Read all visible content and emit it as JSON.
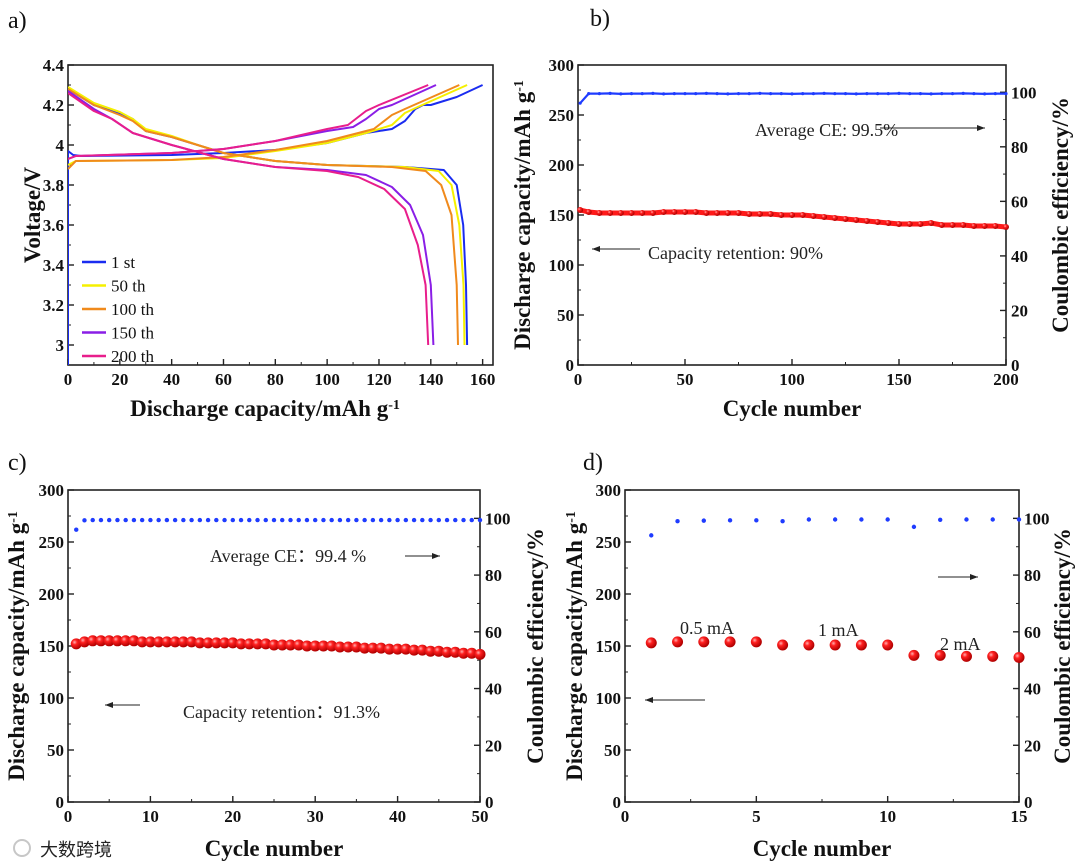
{
  "watermark": "大数跨境",
  "chart_data": [
    {
      "panel": "a)",
      "type": "line",
      "xlabel": "Discharge capacity/mAh g",
      "xlabel_sup": "-1",
      "ylabel": "Voltage/V",
      "xlim": [
        0,
        164
      ],
      "ylim": [
        2.9,
        4.4
      ],
      "xticks": [
        0,
        20,
        40,
        60,
        80,
        100,
        120,
        140,
        160
      ],
      "yticks": [
        3.0,
        3.2,
        3.4,
        3.6,
        3.8,
        4.0,
        4.2,
        4.4
      ],
      "legend_position": "bottom-left",
      "series": [
        {
          "name": "1 st",
          "color": "#1a2cf0",
          "charge": [
            [
              0,
              2.9
            ],
            [
              0,
              3.97
            ],
            [
              2,
              3.95
            ],
            [
              5,
              3.945
            ],
            [
              40,
              3.95
            ],
            [
              60,
              3.96
            ],
            [
              80,
              3.975
            ],
            [
              100,
              4.01
            ],
            [
              115,
              4.06
            ],
            [
              120,
              4.07
            ],
            [
              125,
              4.08
            ],
            [
              130,
              4.12
            ],
            [
              134,
              4.18
            ],
            [
              137,
              4.2
            ],
            [
              140,
              4.2
            ],
            [
              150,
              4.24
            ],
            [
              160,
              4.3
            ]
          ],
          "discharge": [
            [
              0,
              4.28
            ],
            [
              10,
              4.2
            ],
            [
              20,
              4.16
            ],
            [
              25,
              4.13
            ],
            [
              30,
              4.07
            ],
            [
              40,
              4.04
            ],
            [
              50,
              4.0
            ],
            [
              60,
              3.96
            ],
            [
              70,
              3.94
            ],
            [
              80,
              3.92
            ],
            [
              100,
              3.9
            ],
            [
              130,
              3.89
            ],
            [
              145,
              3.875
            ],
            [
              150,
              3.8
            ],
            [
              152.5,
              3.6
            ],
            [
              153.6,
              3.3
            ],
            [
              154,
              3.0
            ]
          ]
        },
        {
          "name": "50 th",
          "color": "#f5f000",
          "charge": [
            [
              0,
              3.9
            ],
            [
              3,
              3.92
            ],
            [
              40,
              3.925
            ],
            [
              60,
              3.935
            ],
            [
              80,
              3.97
            ],
            [
              100,
              4.01
            ],
            [
              115,
              4.06
            ],
            [
              125,
              4.1
            ],
            [
              130,
              4.16
            ],
            [
              135,
              4.19
            ],
            [
              154,
              4.3
            ]
          ],
          "discharge": [
            [
              0,
              4.29
            ],
            [
              10,
              4.21
            ],
            [
              20,
              4.165
            ],
            [
              25,
              4.13
            ],
            [
              30,
              4.08
            ],
            [
              40,
              4.045
            ],
            [
              50,
              4.0
            ],
            [
              60,
              3.96
            ],
            [
              70,
              3.94
            ],
            [
              80,
              3.92
            ],
            [
              100,
              3.9
            ],
            [
              130,
              3.89
            ],
            [
              143,
              3.87
            ],
            [
              148,
              3.8
            ],
            [
              151,
              3.6
            ],
            [
              152.6,
              3.3
            ],
            [
              153,
              3.0
            ]
          ]
        },
        {
          "name": "100 th",
          "color": "#f08a1c",
          "charge": [
            [
              0,
              3.88
            ],
            [
              3,
              3.92
            ],
            [
              40,
              3.925
            ],
            [
              60,
              3.94
            ],
            [
              80,
              3.975
            ],
            [
              100,
              4.02
            ],
            [
              118,
              4.08
            ],
            [
              125,
              4.15
            ],
            [
              130,
              4.18
            ],
            [
              151,
              4.3
            ]
          ],
          "discharge": [
            [
              0,
              4.28
            ],
            [
              10,
              4.2
            ],
            [
              20,
              4.15
            ],
            [
              25,
              4.12
            ],
            [
              30,
              4.07
            ],
            [
              40,
              4.04
            ],
            [
              50,
              4.0
            ],
            [
              60,
              3.96
            ],
            [
              70,
              3.94
            ],
            [
              80,
              3.92
            ],
            [
              100,
              3.9
            ],
            [
              125,
              3.89
            ],
            [
              138,
              3.87
            ],
            [
              144,
              3.8
            ],
            [
              148,
              3.65
            ],
            [
              150,
              3.3
            ],
            [
              150.5,
              3.0
            ]
          ]
        },
        {
          "name": "150 th",
          "color": "#8a1ee6",
          "charge": [
            [
              0,
              3.93
            ],
            [
              3,
              3.945
            ],
            [
              40,
              3.96
            ],
            [
              60,
              3.98
            ],
            [
              80,
              4.02
            ],
            [
              100,
              4.07
            ],
            [
              110,
              4.09
            ],
            [
              115,
              4.13
            ],
            [
              120,
              4.18
            ],
            [
              125,
              4.2
            ],
            [
              142,
              4.3
            ]
          ],
          "discharge": [
            [
              0,
              4.27
            ],
            [
              10,
              4.18
            ],
            [
              17,
              4.13
            ],
            [
              25,
              4.06
            ],
            [
              40,
              4.0
            ],
            [
              60,
              3.93
            ],
            [
              80,
              3.89
            ],
            [
              100,
              3.875
            ],
            [
              115,
              3.85
            ],
            [
              125,
              3.79
            ],
            [
              132,
              3.7
            ],
            [
              137,
              3.55
            ],
            [
              140,
              3.3
            ],
            [
              141,
              3.0
            ]
          ]
        },
        {
          "name": "200 th",
          "color": "#e81e8c",
          "charge": [
            [
              0,
              3.93
            ],
            [
              3,
              3.945
            ],
            [
              40,
              3.96
            ],
            [
              60,
              3.98
            ],
            [
              80,
              4.02
            ],
            [
              100,
              4.08
            ],
            [
              108,
              4.1
            ],
            [
              115,
              4.17
            ],
            [
              120,
              4.2
            ],
            [
              139,
              4.3
            ]
          ],
          "discharge": [
            [
              0,
              4.26
            ],
            [
              10,
              4.17
            ],
            [
              17,
              4.13
            ],
            [
              25,
              4.06
            ],
            [
              40,
              4.0
            ],
            [
              60,
              3.93
            ],
            [
              80,
              3.89
            ],
            [
              100,
              3.87
            ],
            [
              112,
              3.84
            ],
            [
              122,
              3.78
            ],
            [
              130,
              3.68
            ],
            [
              135,
              3.5
            ],
            [
              138,
              3.3
            ],
            [
              139,
              3.0
            ]
          ]
        }
      ]
    },
    {
      "panel": "b)",
      "type": "scatter",
      "xlabel": "Cycle number",
      "ylabel": "Discharge capacity/mAh g",
      "ylabel_sup": "-1",
      "y2label": "Coulombic efficiency/%",
      "xlim": [
        0,
        200
      ],
      "ylim": [
        0,
        300
      ],
      "y2lim": [
        0,
        110
      ],
      "xticks": [
        0,
        50,
        100,
        150,
        200
      ],
      "yticks": [
        0,
        50,
        100,
        150,
        200,
        250,
        300
      ],
      "y2ticks": [
        0,
        20,
        40,
        60,
        80,
        100
      ],
      "annotations": [
        "Average CE: 99.5%",
        "Capacity retention: 90%"
      ],
      "x": [
        1,
        5,
        10,
        15,
        20,
        25,
        30,
        35,
        40,
        45,
        50,
        55,
        60,
        65,
        70,
        75,
        80,
        85,
        90,
        95,
        100,
        105,
        110,
        115,
        120,
        125,
        130,
        135,
        140,
        145,
        150,
        155,
        160,
        165,
        170,
        175,
        180,
        185,
        190,
        195,
        200
      ],
      "capacity": [
        155,
        153,
        152,
        152,
        152,
        152,
        152,
        152,
        153,
        153,
        153,
        153,
        152,
        152,
        152,
        152,
        151,
        151,
        151,
        150,
        150,
        150,
        149,
        148,
        147,
        146,
        145,
        144,
        143,
        142,
        141,
        141,
        141,
        142,
        140,
        140,
        140,
        139,
        139,
        139,
        138
      ],
      "ce": [
        96,
        99.5,
        99.5,
        99.6,
        99.4,
        99.5,
        99.5,
        99.6,
        99.4,
        99.5,
        99.5,
        99.5,
        99.6,
        99.5,
        99.4,
        99.5,
        99.5,
        99.6,
        99.5,
        99.5,
        99.4,
        99.5,
        99.5,
        99.6,
        99.5,
        99.5,
        99.4,
        99.5,
        99.5,
        99.5,
        99.6,
        99.5,
        99.5,
        99.4,
        99.5,
        99.5,
        99.6,
        99.5,
        99.4,
        99.5,
        99.5
      ]
    },
    {
      "panel": "c)",
      "type": "scatter",
      "xlabel": "Cycle number",
      "ylabel": "Discharge capacity/mAh g",
      "ylabel_sup": "-1",
      "y2label": "Coulombic efficiency/%",
      "xlim": [
        0,
        50
      ],
      "ylim": [
        0,
        300
      ],
      "y2lim": [
        0,
        110
      ],
      "xticks": [
        0,
        10,
        20,
        30,
        40,
        50
      ],
      "yticks": [
        0,
        50,
        100,
        150,
        200,
        250,
        300
      ],
      "y2ticks": [
        0,
        20,
        40,
        60,
        80,
        100
      ],
      "annotations": [
        "Average CE：99.4 %",
        "Capacity retention：91.3%"
      ],
      "capacity": [
        152,
        154,
        155,
        155,
        155,
        155,
        155,
        155,
        154,
        154,
        154,
        154,
        154,
        154,
        154,
        153,
        153,
        153,
        153,
        153,
        152,
        152,
        152,
        152,
        151,
        151,
        151,
        151,
        150,
        150,
        150,
        150,
        149,
        149,
        149,
        148,
        148,
        148,
        147,
        147,
        147,
        146,
        146,
        145,
        145,
        144,
        144,
        143,
        143,
        142
      ],
      "ce": [
        96,
        99.3,
        99.4,
        99.4,
        99.4,
        99.4,
        99.4,
        99.4,
        99.4,
        99.4,
        99.4,
        99.4,
        99.4,
        99.4,
        99.4,
        99.4,
        99.4,
        99.4,
        99.4,
        99.4,
        99.4,
        99.4,
        99.4,
        99.4,
        99.4,
        99.4,
        99.4,
        99.4,
        99.4,
        99.4,
        99.4,
        99.4,
        99.4,
        99.4,
        99.4,
        99.4,
        99.4,
        99.4,
        99.4,
        99.4,
        99.4,
        99.4,
        99.4,
        99.4,
        99.4,
        99.4,
        99.4,
        99.4,
        99.4,
        99.4
      ]
    },
    {
      "panel": "d)",
      "type": "scatter",
      "xlabel": "Cycle number",
      "ylabel": "Discharge capacity/mAh g",
      "ylabel_sup": "-1",
      "y2label": "Coulombic efficiency/%",
      "xlim": [
        0,
        15
      ],
      "ylim": [
        0,
        300
      ],
      "y2lim": [
        0,
        110
      ],
      "xticks": [
        0,
        5,
        10,
        15
      ],
      "yticks": [
        0,
        50,
        100,
        150,
        200,
        250,
        300
      ],
      "y2ticks": [
        0,
        20,
        40,
        60,
        80,
        100
      ],
      "annotations": [
        "0.5 mA",
        "1 mA",
        "2 mA"
      ],
      "capacity": [
        153,
        154,
        154,
        154,
        154,
        151,
        151,
        151,
        151,
        151,
        141,
        141,
        140,
        140,
        139
      ],
      "ce": [
        94,
        99,
        99.2,
        99.3,
        99.3,
        99,
        99.6,
        99.6,
        99.6,
        99.6,
        97,
        99.5,
        99.6,
        99.6,
        99.6
      ]
    }
  ]
}
